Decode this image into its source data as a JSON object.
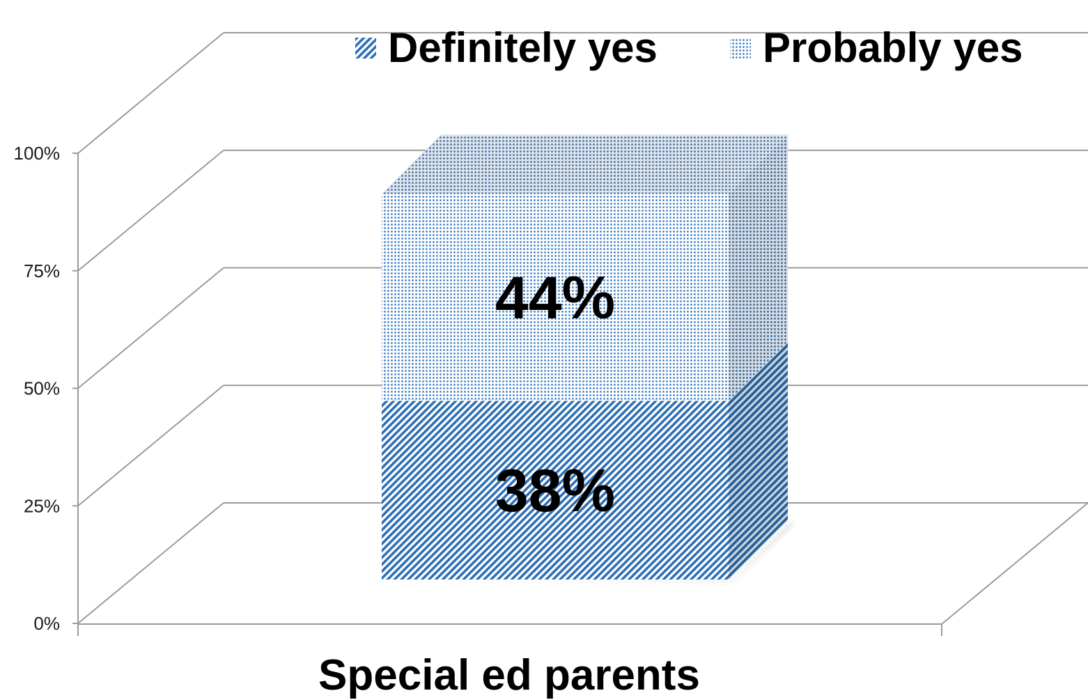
{
  "chart_data": {
    "type": "bar",
    "stacked": true,
    "three_d": true,
    "categories": [
      "Special ed parents"
    ],
    "series": [
      {
        "name": "Definitely yes",
        "values": [
          38
        ],
        "label": "38%",
        "color": "#2e6fb5",
        "pattern": "diagonal-stripes"
      },
      {
        "name": "Probably yes",
        "values": [
          44
        ],
        "label": "44%",
        "color": "#3a7bbf",
        "pattern": "dots"
      }
    ],
    "ylim": [
      0,
      100
    ],
    "yticks": [
      0,
      25,
      50,
      75,
      100
    ],
    "ytick_labels": [
      "0%",
      "25%",
      "50%",
      "75%",
      "100%"
    ],
    "grid": true,
    "legend_position": "top"
  }
}
